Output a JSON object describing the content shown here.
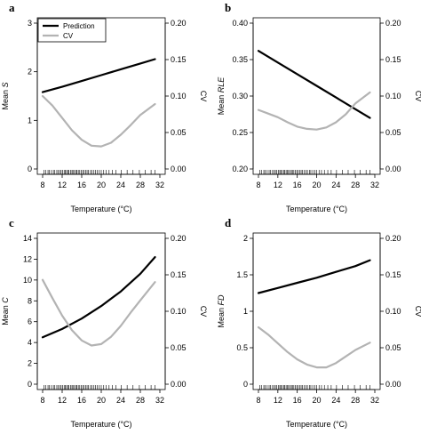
{
  "figure": {
    "legend": {
      "entries": [
        {
          "label": "Prediction",
          "color": "#000000"
        },
        {
          "label": "CV",
          "color": "#b3b3b3"
        }
      ]
    }
  },
  "chart_data": [
    {
      "type": "line",
      "panel_label": "a",
      "xlabel": "Temperature (°C)",
      "ylabel_prefix": "Mean ",
      "ylabel_var": "S",
      "ylabel_right": "CV",
      "xlim": [
        8,
        32
      ],
      "x_ticks": [
        8,
        12,
        16,
        20,
        24,
        28,
        32
      ],
      "ylim": [
        0,
        3
      ],
      "y_ticks": [
        0,
        1,
        2,
        3
      ],
      "y_tick_labels": [
        "0",
        "1",
        "2",
        "3"
      ],
      "ylim_right": [
        0,
        0.2
      ],
      "y_right_ticks": [
        0,
        0.05,
        0.1,
        0.15,
        0.2
      ],
      "y_right_tick_labels": [
        "0.00",
        "0.05",
        "0.10",
        "0.15",
        "0.20"
      ],
      "legend_position": "top-left",
      "prediction_color": "#000000",
      "cv_color": "#b3b3b3",
      "series": [
        {
          "name": "Prediction",
          "axis": "left",
          "x": [
            8,
            12,
            16,
            20,
            24,
            28,
            31
          ],
          "y": [
            1.58,
            1.69,
            1.81,
            1.93,
            2.05,
            2.17,
            2.26
          ]
        },
        {
          "name": "CV",
          "axis": "right",
          "x": [
            8,
            10,
            12,
            14,
            16,
            18,
            20,
            22,
            24,
            26,
            28,
            31
          ],
          "y": [
            0.1,
            0.087,
            0.07,
            0.053,
            0.04,
            0.032,
            0.031,
            0.036,
            0.047,
            0.06,
            0.074,
            0.089
          ]
        }
      ],
      "rug_x": [
        8.3,
        8.6,
        9.1,
        9.4,
        9.8,
        10.2,
        10.5,
        10.9,
        11.2,
        11.5,
        11.8,
        12.1,
        12.4,
        12.6,
        12.9,
        13.2,
        13.4,
        13.7,
        14.0,
        14.2,
        14.5,
        14.8,
        15.0,
        15.3,
        15.6,
        15.9,
        16.2,
        16.5,
        16.8,
        17.1,
        17.4,
        17.8,
        18.1,
        18.5,
        18.8,
        19.2,
        19.6,
        20.0,
        20.5,
        21.0,
        21.6,
        22.3,
        23.0,
        24.1,
        25.3,
        26.5,
        27.8,
        29.0,
        30.2,
        31.0
      ]
    },
    {
      "type": "line",
      "panel_label": "b",
      "xlabel": "Temperature (°C)",
      "ylabel_prefix": "Mean ",
      "ylabel_var": "RLE",
      "ylabel_right": "CV",
      "xlim": [
        8,
        32
      ],
      "x_ticks": [
        8,
        12,
        16,
        20,
        24,
        28,
        32
      ],
      "ylim": [
        0.2,
        0.4
      ],
      "y_ticks": [
        0.2,
        0.25,
        0.3,
        0.35,
        0.4
      ],
      "y_tick_labels": [
        "0.20",
        "0.25",
        "0.30",
        "0.35",
        "0.40"
      ],
      "ylim_right": [
        0,
        0.2
      ],
      "y_right_ticks": [
        0,
        0.05,
        0.1,
        0.15,
        0.2
      ],
      "y_right_tick_labels": [
        "0.00",
        "0.05",
        "0.10",
        "0.15",
        "0.20"
      ],
      "prediction_color": "#000000",
      "cv_color": "#b3b3b3",
      "series": [
        {
          "name": "Prediction",
          "axis": "left",
          "x": [
            8,
            12,
            16,
            20,
            24,
            28,
            31
          ],
          "y": [
            0.362,
            0.346,
            0.33,
            0.314,
            0.298,
            0.282,
            0.27
          ]
        },
        {
          "name": "CV",
          "axis": "right",
          "x": [
            8,
            10,
            12,
            14,
            16,
            18,
            20,
            22,
            24,
            26,
            28,
            31
          ],
          "y": [
            0.081,
            0.076,
            0.071,
            0.064,
            0.058,
            0.055,
            0.054,
            0.057,
            0.064,
            0.075,
            0.09,
            0.105
          ]
        }
      ],
      "rug_x": [
        8.3,
        8.6,
        9.1,
        9.4,
        9.8,
        10.2,
        10.5,
        10.9,
        11.2,
        11.5,
        11.8,
        12.1,
        12.4,
        12.6,
        12.9,
        13.2,
        13.4,
        13.7,
        14.0,
        14.2,
        14.5,
        14.8,
        15.0,
        15.3,
        15.6,
        15.9,
        16.2,
        16.5,
        16.8,
        17.1,
        17.4,
        17.8,
        18.1,
        18.5,
        18.8,
        19.2,
        19.6,
        20.0,
        20.5,
        21.0,
        21.6,
        22.3,
        23.0,
        24.1,
        25.3,
        26.5,
        27.8,
        29.0,
        30.2,
        31.0
      ]
    },
    {
      "type": "line",
      "panel_label": "c",
      "xlabel": "Temperature (°C)",
      "ylabel_prefix": "Mean ",
      "ylabel_var": "C",
      "ylabel_right": "CV",
      "xlim": [
        8,
        32
      ],
      "x_ticks": [
        8,
        12,
        16,
        20,
        24,
        28,
        32
      ],
      "ylim": [
        0,
        14
      ],
      "y_ticks": [
        0,
        2,
        4,
        6,
        8,
        10,
        12,
        14
      ],
      "y_tick_labels": [
        "0",
        "2",
        "4",
        "6",
        "8",
        "10",
        "12",
        "14"
      ],
      "ylim_right": [
        0,
        0.2
      ],
      "y_right_ticks": [
        0,
        0.05,
        0.1,
        0.15,
        0.2
      ],
      "y_right_tick_labels": [
        "0.00",
        "0.05",
        "0.10",
        "0.15",
        "0.20"
      ],
      "prediction_color": "#000000",
      "cv_color": "#b3b3b3",
      "series": [
        {
          "name": "Prediction",
          "axis": "left",
          "x": [
            8,
            12,
            16,
            20,
            24,
            28,
            31
          ],
          "y": [
            4.5,
            5.3,
            6.3,
            7.5,
            8.9,
            10.6,
            12.2
          ]
        },
        {
          "name": "CV",
          "axis": "right",
          "x": [
            8,
            10,
            12,
            14,
            16,
            18,
            20,
            22,
            24,
            26,
            28,
            31
          ],
          "y": [
            0.143,
            0.118,
            0.094,
            0.074,
            0.06,
            0.053,
            0.055,
            0.065,
            0.08,
            0.098,
            0.115,
            0.14
          ]
        }
      ],
      "rug_x": [
        8.3,
        8.6,
        9.1,
        9.4,
        9.8,
        10.2,
        10.5,
        10.9,
        11.2,
        11.5,
        11.8,
        12.1,
        12.4,
        12.6,
        12.9,
        13.2,
        13.4,
        13.7,
        14.0,
        14.2,
        14.5,
        14.8,
        15.0,
        15.3,
        15.6,
        15.9,
        16.2,
        16.5,
        16.8,
        17.1,
        17.4,
        17.8,
        18.1,
        18.5,
        18.8,
        19.2,
        19.6,
        20.0,
        20.5,
        21.0,
        21.6,
        22.3,
        23.0,
        24.1,
        25.3,
        26.5,
        27.8,
        29.0,
        30.2,
        31.0
      ]
    },
    {
      "type": "line",
      "panel_label": "d",
      "xlabel": "Temperature (°C)",
      "ylabel_prefix": "Mean ",
      "ylabel_var": "FD",
      "ylabel_right": "CV",
      "xlim": [
        8,
        32
      ],
      "x_ticks": [
        8,
        12,
        16,
        20,
        24,
        28,
        32
      ],
      "ylim": [
        0,
        2
      ],
      "y_ticks": [
        0,
        0.5,
        1,
        1.5,
        2
      ],
      "y_tick_labels": [
        "0",
        "0.5",
        "1",
        "1.5",
        "2"
      ],
      "ylim_right": [
        0,
        0.2
      ],
      "y_right_ticks": [
        0,
        0.05,
        0.1,
        0.15,
        0.2
      ],
      "y_right_tick_labels": [
        "0.00",
        "0.05",
        "0.10",
        "0.15",
        "0.20"
      ],
      "prediction_color": "#000000",
      "cv_color": "#b3b3b3",
      "series": [
        {
          "name": "Prediction",
          "axis": "left",
          "x": [
            8,
            12,
            16,
            20,
            24,
            28,
            31
          ],
          "y": [
            1.25,
            1.32,
            1.39,
            1.46,
            1.54,
            1.62,
            1.7
          ]
        },
        {
          "name": "CV",
          "axis": "right",
          "x": [
            8,
            10,
            12,
            14,
            16,
            18,
            20,
            22,
            24,
            26,
            28,
            31
          ],
          "y": [
            0.078,
            0.068,
            0.056,
            0.044,
            0.034,
            0.027,
            0.023,
            0.023,
            0.029,
            0.038,
            0.047,
            0.057
          ]
        }
      ],
      "rug_x": [
        8.3,
        8.6,
        9.1,
        9.4,
        9.8,
        10.2,
        10.5,
        10.9,
        11.2,
        11.5,
        11.8,
        12.1,
        12.4,
        12.6,
        12.9,
        13.2,
        13.4,
        13.7,
        14.0,
        14.2,
        14.5,
        14.8,
        15.0,
        15.3,
        15.6,
        15.9,
        16.2,
        16.5,
        16.8,
        17.1,
        17.4,
        17.8,
        18.1,
        18.5,
        18.8,
        19.2,
        19.6,
        20.0,
        20.5,
        21.0,
        21.6,
        22.3,
        23.0,
        24.1,
        25.3,
        26.5,
        27.8,
        29.0,
        30.2,
        31.0
      ]
    }
  ]
}
